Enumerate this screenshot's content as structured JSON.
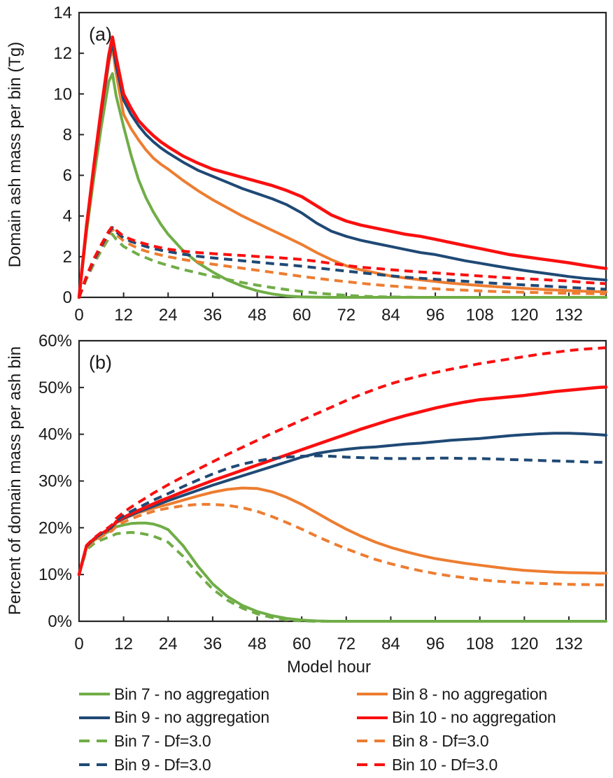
{
  "figure": {
    "x_axis_title": "Model hour"
  },
  "legend": {
    "items": [
      {
        "label": "Bin 7 - no aggregation",
        "color": "#70AD47",
        "dash": false
      },
      {
        "label": "Bin 8 - no aggregation",
        "color": "#ED7D31",
        "dash": false
      },
      {
        "label": "Bin 9 - no aggregation",
        "color": "#1F4975",
        "dash": false
      },
      {
        "label": "Bin 10 - no aggregation",
        "color": "#FA0F0F",
        "dash": false
      },
      {
        "label": "Bin 7 - Df=3.0",
        "color": "#70AD47",
        "dash": true
      },
      {
        "label": "Bin 8 - Df=3.0",
        "color": "#ED7D31",
        "dash": true
      },
      {
        "label": "Bin 9 - Df=3.0",
        "color": "#1F4975",
        "dash": true
      },
      {
        "label": "Bin 10 - Df=3.0",
        "color": "#FA0F0F",
        "dash": true
      }
    ]
  },
  "chart_data": [
    {
      "type": "line",
      "panel": "a",
      "panel_label": "(a)",
      "title": "Domain ash mass per bin",
      "xlabel": "",
      "ylabel": "Domain ash mass per bin (Tg)",
      "xlim": [
        0,
        142
      ],
      "ylim": [
        0,
        14
      ],
      "grid": false,
      "xticks": [
        0,
        12,
        24,
        36,
        48,
        60,
        72,
        84,
        96,
        108,
        120,
        132
      ],
      "xtick_labels": [
        "0",
        "12",
        "24",
        "36",
        "48",
        "60",
        "72",
        "84",
        "96",
        "108",
        "120",
        "132"
      ],
      "yticks": [
        0,
        2,
        4,
        6,
        8,
        10,
        12,
        14
      ],
      "ytick_labels": [
        "0",
        "2",
        "4",
        "6",
        "8",
        "10",
        "12",
        "14"
      ],
      "x": [
        0,
        2,
        4,
        6,
        8,
        9,
        10,
        12,
        14,
        16,
        18,
        20,
        22,
        24,
        28,
        32,
        36,
        40,
        44,
        48,
        52,
        56,
        60,
        64,
        68,
        72,
        76,
        80,
        84,
        88,
        92,
        96,
        100,
        104,
        108,
        112,
        116,
        120,
        124,
        128,
        132,
        136,
        140,
        142
      ],
      "series": [
        {
          "name": "Bin 7 - no aggregation",
          "color": "#70AD47",
          "dash": false,
          "width": 4,
          "values": [
            0,
            3.2,
            5.9,
            8.4,
            10.6,
            11.0,
            9.9,
            8.4,
            7.0,
            5.8,
            4.9,
            4.2,
            3.6,
            3.1,
            2.3,
            1.7,
            1.25,
            0.85,
            0.55,
            0.32,
            0.17,
            0.07,
            0.02,
            0.01,
            0,
            0,
            0,
            0,
            0,
            0,
            0,
            0,
            0,
            0,
            0,
            0,
            0,
            0,
            0,
            0,
            0,
            0,
            0,
            0
          ]
        },
        {
          "name": "Bin 8 - no aggregation",
          "color": "#ED7D31",
          "dash": false,
          "width": 4,
          "values": [
            0,
            3.4,
            6.3,
            9.0,
            11.5,
            12.3,
            11.0,
            9.0,
            8.3,
            7.75,
            7.25,
            6.85,
            6.55,
            6.3,
            5.75,
            5.25,
            4.8,
            4.4,
            4.0,
            3.65,
            3.3,
            2.95,
            2.6,
            2.2,
            1.85,
            1.55,
            1.35,
            1.2,
            1.05,
            0.95,
            0.86,
            0.78,
            0.7,
            0.64,
            0.58,
            0.53,
            0.48,
            0.44,
            0.4,
            0.36,
            0.33,
            0.3,
            0.28,
            0.27
          ]
        },
        {
          "name": "Bin 9 - no aggregation",
          "color": "#1F4975",
          "dash": false,
          "width": 4,
          "values": [
            0,
            3.45,
            6.4,
            9.1,
            11.7,
            12.5,
            11.4,
            9.7,
            9.0,
            8.45,
            8.0,
            7.65,
            7.35,
            7.1,
            6.65,
            6.25,
            5.95,
            5.65,
            5.35,
            5.1,
            4.85,
            4.55,
            4.15,
            3.65,
            3.25,
            3.0,
            2.8,
            2.65,
            2.5,
            2.35,
            2.2,
            2.1,
            1.95,
            1.8,
            1.68,
            1.55,
            1.43,
            1.32,
            1.22,
            1.12,
            1.02,
            0.94,
            0.88,
            0.85
          ]
        },
        {
          "name": "Bin 10 - no aggregation",
          "color": "#FA0F0F",
          "dash": false,
          "width": 4.5,
          "values": [
            0,
            3.5,
            6.5,
            9.3,
            11.9,
            12.8,
            11.8,
            10.0,
            9.3,
            8.7,
            8.3,
            7.95,
            7.65,
            7.4,
            6.95,
            6.6,
            6.3,
            6.1,
            5.9,
            5.7,
            5.5,
            5.25,
            4.95,
            4.5,
            4.05,
            3.75,
            3.55,
            3.4,
            3.25,
            3.1,
            3.0,
            2.85,
            2.7,
            2.55,
            2.4,
            2.25,
            2.1,
            2.0,
            1.9,
            1.8,
            1.7,
            1.58,
            1.47,
            1.42
          ]
        },
        {
          "name": "Bin 7 - Df=3.0",
          "color": "#70AD47",
          "dash": true,
          "width": 4,
          "values": [
            0,
            0.9,
            1.65,
            2.3,
            2.9,
            3.1,
            2.85,
            2.5,
            2.3,
            2.1,
            1.95,
            1.8,
            1.68,
            1.57,
            1.37,
            1.2,
            1.03,
            0.88,
            0.73,
            0.6,
            0.48,
            0.38,
            0.29,
            0.21,
            0.15,
            0.1,
            0.06,
            0.03,
            0.02,
            0.01,
            0,
            0,
            0,
            0,
            0,
            0,
            0,
            0,
            0,
            0,
            0,
            0,
            0,
            0
          ]
        },
        {
          "name": "Bin 8 - Df=3.0",
          "color": "#ED7D31",
          "dash": true,
          "width": 4,
          "values": [
            0,
            0.95,
            1.75,
            2.42,
            3.08,
            3.35,
            3.08,
            2.78,
            2.58,
            2.4,
            2.27,
            2.17,
            2.08,
            2.0,
            1.86,
            1.74,
            1.63,
            1.53,
            1.43,
            1.33,
            1.23,
            1.13,
            1.03,
            0.94,
            0.85,
            0.77,
            0.69,
            0.62,
            0.56,
            0.51,
            0.46,
            0.42,
            0.38,
            0.35,
            0.32,
            0.29,
            0.27,
            0.25,
            0.23,
            0.21,
            0.2,
            0.19,
            0.18,
            0.17
          ]
        },
        {
          "name": "Bin 9 - Df=3.0",
          "color": "#1F4975",
          "dash": true,
          "width": 4,
          "values": [
            0,
            1.0,
            1.82,
            2.5,
            3.18,
            3.43,
            3.22,
            2.92,
            2.75,
            2.62,
            2.5,
            2.4,
            2.32,
            2.25,
            2.12,
            2.02,
            1.94,
            1.87,
            1.8,
            1.73,
            1.66,
            1.6,
            1.53,
            1.45,
            1.37,
            1.29,
            1.21,
            1.13,
            1.06,
            0.99,
            0.94,
            0.89,
            0.84,
            0.79,
            0.74,
            0.69,
            0.65,
            0.61,
            0.57,
            0.53,
            0.49,
            0.45,
            0.41,
            0.4
          ]
        },
        {
          "name": "Bin 10 - Df=3.0",
          "color": "#FA0F0F",
          "dash": true,
          "width": 4,
          "values": [
            0,
            1.05,
            1.9,
            2.6,
            3.25,
            3.5,
            3.3,
            3.0,
            2.85,
            2.72,
            2.62,
            2.52,
            2.44,
            2.37,
            2.27,
            2.2,
            2.15,
            2.1,
            2.06,
            2.01,
            1.97,
            1.92,
            1.86,
            1.77,
            1.67,
            1.57,
            1.48,
            1.42,
            1.36,
            1.3,
            1.25,
            1.2,
            1.15,
            1.1,
            1.05,
            1.0,
            0.96,
            0.92,
            0.88,
            0.84,
            0.8,
            0.74,
            0.69,
            0.67
          ]
        }
      ]
    },
    {
      "type": "line",
      "panel": "b",
      "panel_label": "(b)",
      "title": "Percent of domain mass per ash bin",
      "xlabel": "Model hour",
      "ylabel": "Percent of domain mass per ash bin",
      "xlim": [
        0,
        142
      ],
      "ylim": [
        0,
        60
      ],
      "grid": false,
      "xticks": [
        0,
        12,
        24,
        36,
        48,
        60,
        72,
        84,
        96,
        108,
        120,
        132
      ],
      "xtick_labels": [
        "0",
        "12",
        "24",
        "36",
        "48",
        "60",
        "72",
        "84",
        "96",
        "108",
        "120",
        "132"
      ],
      "yticks": [
        0,
        10,
        20,
        30,
        40,
        50,
        60
      ],
      "ytick_labels": [
        "0%",
        "10%",
        "20%",
        "30%",
        "40%",
        "50%",
        "60%"
      ],
      "x": [
        0,
        2,
        4,
        6,
        8,
        9,
        10,
        12,
        14,
        16,
        18,
        20,
        22,
        24,
        28,
        32,
        36,
        40,
        44,
        48,
        52,
        56,
        60,
        64,
        68,
        72,
        76,
        80,
        84,
        88,
        92,
        96,
        100,
        104,
        108,
        112,
        116,
        120,
        124,
        128,
        132,
        136,
        140,
        142
      ],
      "series": [
        {
          "name": "Bin 7 - no aggregation",
          "color": "#70AD47",
          "dash": false,
          "width": 4,
          "values": [
            10,
            15.8,
            17.3,
            18.3,
            19.2,
            19.6,
            20.2,
            20.6,
            20.9,
            21.0,
            21.0,
            20.8,
            20.3,
            19.6,
            16.2,
            11.8,
            8.0,
            5.3,
            3.4,
            2.1,
            1.2,
            0.6,
            0.25,
            0.08,
            0,
            0,
            0,
            0,
            0,
            0,
            0,
            0,
            0,
            0,
            0,
            0,
            0,
            0,
            0,
            0,
            0,
            0,
            0,
            0
          ]
        },
        {
          "name": "Bin 8 - no aggregation",
          "color": "#ED7D31",
          "dash": false,
          "width": 4,
          "values": [
            10,
            15.9,
            17.4,
            18.5,
            19.5,
            20.0,
            21.0,
            21.9,
            22.6,
            23.2,
            23.7,
            24.2,
            24.6,
            25.0,
            25.9,
            26.8,
            27.6,
            28.2,
            28.5,
            28.4,
            27.7,
            26.5,
            25.0,
            23.2,
            21.4,
            19.7,
            18.2,
            16.9,
            15.8,
            14.9,
            14.1,
            13.4,
            12.9,
            12.4,
            12.0,
            11.6,
            11.2,
            10.9,
            10.7,
            10.5,
            10.4,
            10.35,
            10.3,
            10.3
          ]
        },
        {
          "name": "Bin 9 - no aggregation",
          "color": "#1F4975",
          "dash": false,
          "width": 4,
          "values": [
            10,
            16.0,
            17.5,
            18.6,
            19.6,
            20.1,
            21.2,
            22.0,
            22.7,
            23.4,
            24.0,
            24.6,
            25.2,
            25.8,
            26.9,
            28.0,
            29.1,
            30.1,
            31.1,
            32.1,
            33.1,
            34.1,
            35.1,
            35.9,
            36.4,
            36.8,
            37.1,
            37.3,
            37.6,
            37.9,
            38.1,
            38.4,
            38.7,
            38.9,
            39.1,
            39.4,
            39.7,
            39.9,
            40.1,
            40.2,
            40.2,
            40.1,
            39.9,
            39.8
          ]
        },
        {
          "name": "Bin 10 - no aggregation",
          "color": "#FA0F0F",
          "dash": false,
          "width": 4.5,
          "values": [
            10,
            16.1,
            17.6,
            18.7,
            19.7,
            20.2,
            21.3,
            22.2,
            23.0,
            23.7,
            24.4,
            25.1,
            25.8,
            26.4,
            27.7,
            28.9,
            30.1,
            31.2,
            32.3,
            33.4,
            34.5,
            35.6,
            36.7,
            37.8,
            38.9,
            40.0,
            41.1,
            42.1,
            43.1,
            44.0,
            44.8,
            45.6,
            46.3,
            46.9,
            47.4,
            47.7,
            48.0,
            48.3,
            48.7,
            49.1,
            49.4,
            49.7,
            50.0,
            50.1
          ]
        },
        {
          "name": "Bin 7 - Df=3.0",
          "color": "#70AD47",
          "dash": true,
          "width": 4,
          "values": [
            10,
            15.3,
            16.6,
            17.4,
            18.0,
            18.3,
            18.7,
            18.9,
            19.0,
            18.9,
            18.6,
            18.2,
            17.6,
            16.9,
            13.9,
            10.2,
            6.9,
            4.5,
            2.8,
            1.6,
            0.8,
            0.3,
            0.08,
            0,
            0,
            0,
            0,
            0,
            0,
            0,
            0,
            0,
            0,
            0,
            0,
            0,
            0,
            0,
            0,
            0,
            0,
            0,
            0,
            0
          ]
        },
        {
          "name": "Bin 8 - Df=3.0",
          "color": "#ED7D31",
          "dash": true,
          "width": 4,
          "values": [
            10,
            15.7,
            17.1,
            18.1,
            19.0,
            19.4,
            20.3,
            21.2,
            21.9,
            22.5,
            23.0,
            23.5,
            23.9,
            24.2,
            24.7,
            25.0,
            25.0,
            24.8,
            24.3,
            23.5,
            22.4,
            21.1,
            19.7,
            18.2,
            16.8,
            15.5,
            14.3,
            13.2,
            12.3,
            11.5,
            10.8,
            10.2,
            9.7,
            9.3,
            8.9,
            8.6,
            8.4,
            8.2,
            8.1,
            8.0,
            7.9,
            7.85,
            7.8,
            7.8
          ]
        },
        {
          "name": "Bin 9 - Df=3.0",
          "color": "#1F4975",
          "dash": true,
          "width": 4,
          "values": [
            10,
            16.0,
            17.6,
            18.7,
            19.8,
            20.3,
            21.5,
            22.6,
            23.5,
            24.3,
            25.1,
            25.9,
            26.6,
            27.3,
            28.8,
            30.2,
            31.5,
            32.7,
            33.6,
            34.3,
            34.8,
            35.1,
            35.3,
            35.4,
            35.3,
            35.1,
            35.0,
            34.9,
            34.8,
            34.8,
            34.8,
            34.9,
            34.9,
            34.8,
            34.8,
            34.7,
            34.6,
            34.5,
            34.4,
            34.3,
            34.2,
            34.1,
            34.0,
            34.0
          ]
        },
        {
          "name": "Bin 10 - Df=3.0",
          "color": "#FA0F0F",
          "dash": true,
          "width": 4,
          "values": [
            10,
            16.2,
            17.8,
            19.0,
            20.1,
            20.7,
            22.0,
            23.3,
            24.4,
            25.4,
            26.4,
            27.4,
            28.3,
            29.2,
            30.9,
            32.5,
            34.1,
            35.7,
            37.2,
            38.7,
            40.2,
            41.6,
            43.0,
            44.4,
            45.8,
            47.2,
            48.5,
            49.7,
            50.8,
            51.7,
            52.5,
            53.2,
            53.9,
            54.5,
            55.1,
            55.6,
            56.1,
            56.6,
            57.1,
            57.5,
            57.9,
            58.2,
            58.4,
            58.5
          ]
        }
      ]
    }
  ]
}
